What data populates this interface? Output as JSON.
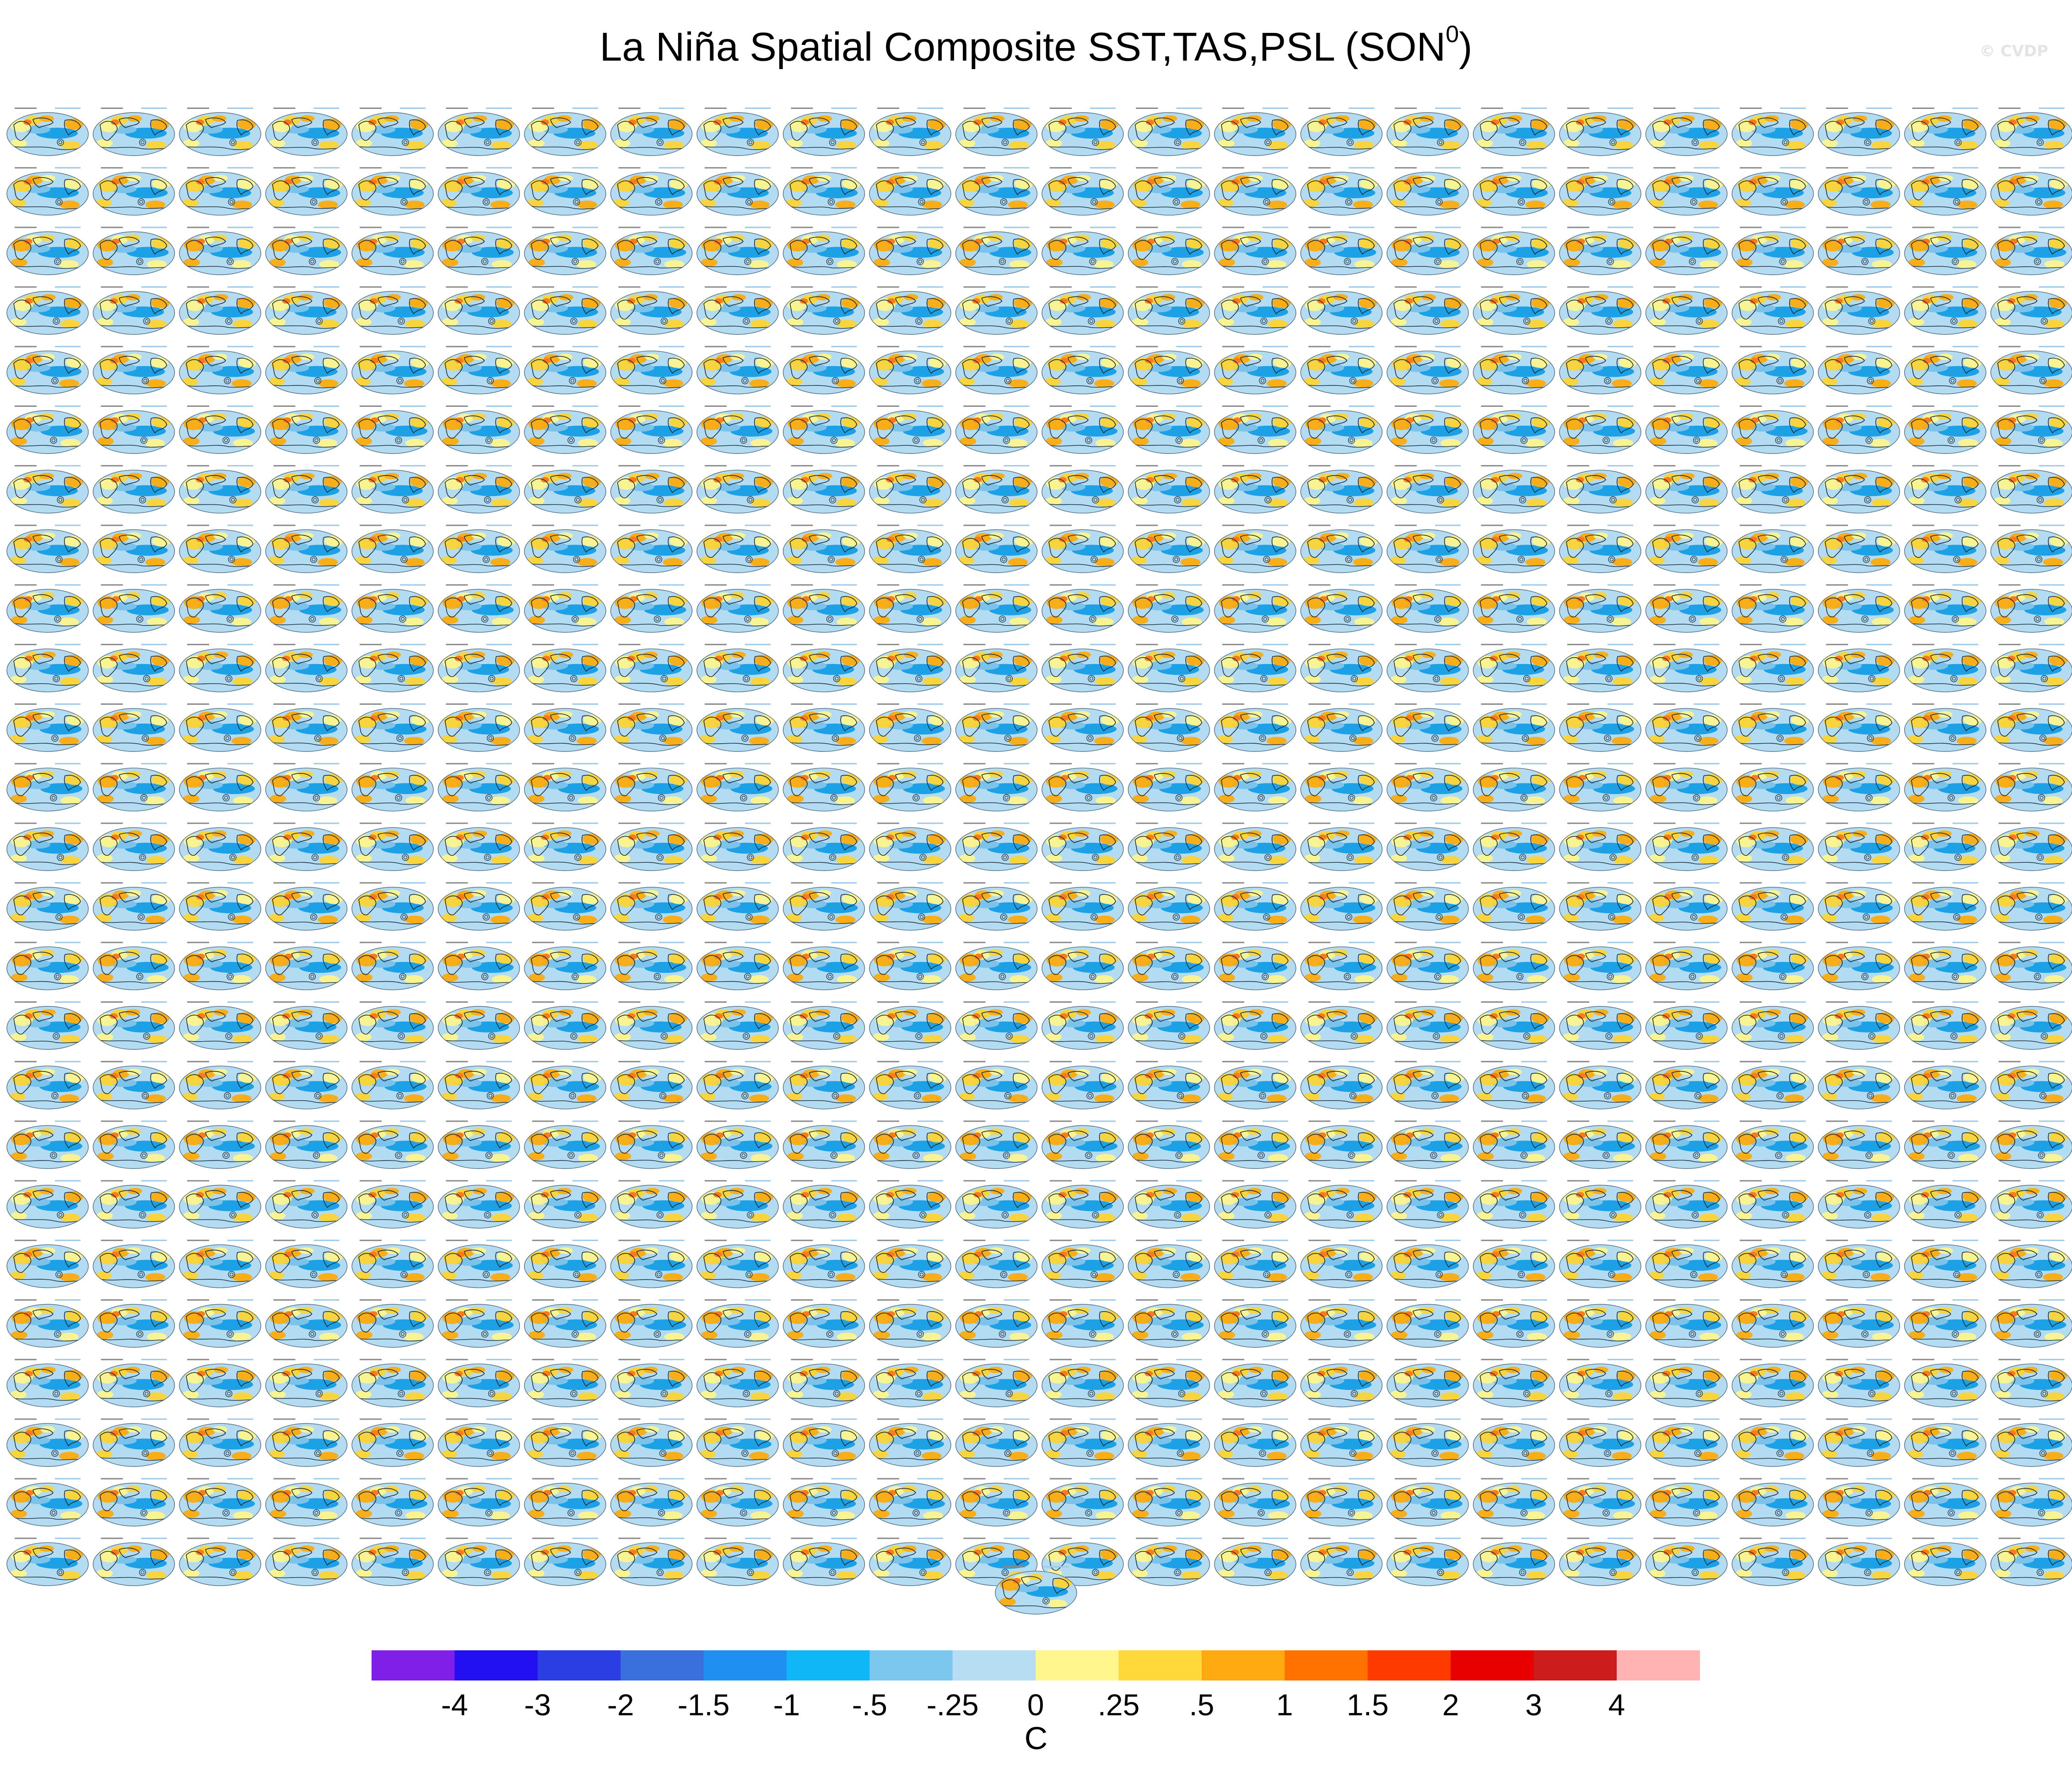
{
  "figure": {
    "title_main": "La Niña Spatial Composite SST,TAS,PSL (SON",
    "title_sup": "0",
    "title_close": ")",
    "watermark": "© CVDP"
  },
  "chart_data": {
    "type": "heatmap",
    "description_kind": "grid of small global map panels",
    "grid": {
      "rows": 25,
      "columns": 24,
      "extra_bottom_panels": 1
    },
    "panel_style": {
      "ocean_background": "#b3dcf2",
      "main_cold_colors": [
        "#1ca0e6",
        "#7cc3ec"
      ],
      "warm_colors": [
        "#fff689",
        "#ffd42b",
        "#ffa900"
      ],
      "contour_color": "#1d2b3a"
    },
    "colorbar": {
      "unit_label": "C",
      "tick_labels": [
        "-4",
        "-3",
        "-2",
        "-1.5",
        "-1",
        "-.5",
        "-.25",
        "0",
        ".25",
        ".5",
        "1",
        "1.5",
        "2",
        "3",
        "4"
      ],
      "colors": [
        "#7f1fe8",
        "#2210f2",
        "#2a3ee3",
        "#3a6fde",
        "#1f8ff2",
        "#0fb7f7",
        "#7cc7ee",
        "#b6ddf2",
        "#fff68e",
        "#ffd83a",
        "#ffaa10",
        "#ff7200",
        "#ff3a00",
        "#e80000",
        "#cc1c1c",
        "#ffb3b3"
      ]
    }
  }
}
